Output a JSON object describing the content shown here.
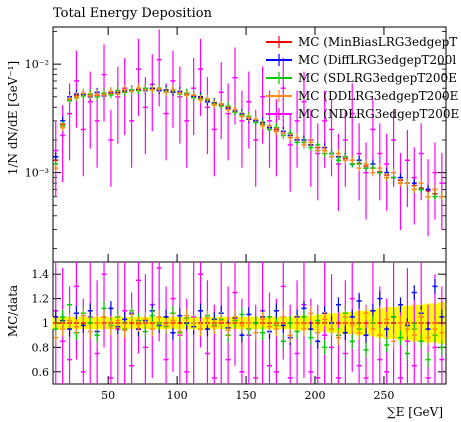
{
  "chart_data": [
    {
      "type": "line",
      "title": "Total Energy Deposition",
      "ylabel": "1/N dN/dE [GeV⁻¹]",
      "yscale": "log",
      "ylim": [
        0.00015,
        0.022
      ],
      "xlim": [
        10,
        295
      ],
      "ytick_values": [
        0.001,
        0.01
      ],
      "ytick_labels": [
        "10⁻³",
        "10⁻²"
      ],
      "legend_position": "top-right",
      "x": [
        12,
        17,
        22,
        27,
        32,
        37,
        42,
        47,
        52,
        57,
        62,
        67,
        72,
        77,
        82,
        87,
        92,
        97,
        102,
        107,
        112,
        117,
        122,
        127,
        132,
        137,
        142,
        147,
        152,
        157,
        162,
        167,
        172,
        177,
        182,
        187,
        192,
        197,
        202,
        207,
        212,
        217,
        222,
        227,
        232,
        237,
        242,
        247,
        252,
        257,
        262,
        267,
        272,
        277,
        282,
        287,
        292
      ],
      "series": [
        {
          "name": "MC (MinBiasLRG3edgepT",
          "color": "#ff0000",
          "values": [
            0.0013,
            0.0028,
            0.0047,
            0.0051,
            0.0052,
            0.0052,
            0.0052,
            0.0053,
            0.0054,
            0.0055,
            0.0056,
            0.0057,
            0.0058,
            0.0059,
            0.0059,
            0.0058,
            0.0057,
            0.0056,
            0.0055,
            0.0053,
            0.0051,
            0.0049,
            0.0046,
            0.0044,
            0.0042,
            0.004,
            0.0037,
            0.0034,
            0.0032,
            0.003,
            0.0028,
            0.0026,
            0.0025,
            0.0023,
            0.0022,
            0.002,
            0.0019,
            0.0018,
            0.0017,
            0.0016,
            0.0015,
            0.0014,
            0.00135,
            0.0013,
            0.00122,
            0.00115,
            0.0011,
            0.00102,
            0.00095,
            0.0009,
            0.00085,
            0.0008,
            0.00076,
            0.00072,
            0.00068,
            0.00064,
            0.0006
          ]
        },
        {
          "name": "MC (DiffLRG3edgepT200l",
          "color": "#0000ff",
          "values": [
            0.0014,
            0.003,
            0.005,
            0.0053,
            0.0053,
            0.005,
            0.0055,
            0.0051,
            0.0055,
            0.0054,
            0.0057,
            0.0058,
            0.0059,
            0.0057,
            0.006,
            0.0057,
            0.0058,
            0.0055,
            0.0056,
            0.0052,
            0.005,
            0.005,
            0.0045,
            0.0044,
            0.0043,
            0.0039,
            0.0037,
            0.0035,
            0.0031,
            0.003,
            0.0029,
            0.0026,
            0.0024,
            0.0024,
            0.0022,
            0.002,
            0.002,
            0.0018,
            0.0016,
            0.0017,
            0.0015,
            0.0014,
            0.0014,
            0.0012,
            0.0013,
            0.0011,
            0.0012,
            0.001,
            0.001,
            0.0009,
            0.0009,
            0.0008,
            0.0008,
            0.0007,
            0.0007,
            0.0007,
            0.0006
          ]
        },
        {
          "name": "MC (SDLRG3edgepT200E",
          "color": "#00cc00",
          "values": [
            0.0012,
            0.0027,
            0.0046,
            0.0049,
            0.0051,
            0.0053,
            0.005,
            0.0054,
            0.0052,
            0.0057,
            0.0055,
            0.0058,
            0.0057,
            0.006,
            0.0058,
            0.006,
            0.0056,
            0.0057,
            0.0053,
            0.0054,
            0.0049,
            0.0048,
            0.0047,
            0.0043,
            0.0041,
            0.0041,
            0.0036,
            0.0034,
            0.0033,
            0.0029,
            0.0028,
            0.0025,
            0.0026,
            0.0022,
            0.0023,
            0.0019,
            0.0019,
            0.0017,
            0.0018,
            0.0015,
            0.0015,
            0.0013,
            0.0014,
            0.0012,
            0.0012,
            0.0011,
            0.0011,
            0.001,
            0.0009,
            0.0009,
            0.0008,
            0.0008,
            0.0007,
            0.0007,
            0.0006,
            0.0006,
            0.0006
          ]
        },
        {
          "name": "MC (DDLRG3edgepT200E",
          "color": "#ff8c1a",
          "values": [
            0.0011,
            0.0026,
            0.0048,
            0.005,
            0.0054,
            0.0051,
            0.0053,
            0.0052,
            0.0056,
            0.0053,
            0.0058,
            0.0056,
            0.006,
            0.0058,
            0.0058,
            0.0059,
            0.0055,
            0.0058,
            0.0054,
            0.0052,
            0.0052,
            0.0047,
            0.0048,
            0.0042,
            0.0043,
            0.0038,
            0.0038,
            0.0033,
            0.0032,
            0.0031,
            0.0027,
            0.0027,
            0.0024,
            0.0023,
            0.0021,
            0.0021,
            0.0018,
            0.0019,
            0.0016,
            0.0016,
            0.0014,
            0.0015,
            0.0013,
            0.0013,
            0.0011,
            0.0012,
            0.001,
            0.0011,
            0.0009,
            0.001,
            0.0008,
            0.0008,
            0.0007,
            0.0008,
            0.0006,
            0.0007,
            0.0006
          ]
        },
        {
          "name": "MC (NDLRG3edgepT200E",
          "color": "#ff00ff",
          "values": [
            0.0016,
            0.0022,
            0.0035,
            0.007,
            0.0025,
            0.0045,
            0.003,
            0.008,
            0.002,
            0.005,
            0.006,
            0.003,
            0.009,
            0.004,
            0.0065,
            0.011,
            0.0035,
            0.007,
            0.005,
            0.003,
            0.006,
            0.009,
            0.004,
            0.0025,
            0.0055,
            0.0035,
            0.0075,
            0.003,
            0.0045,
            0.002,
            0.005,
            0.003,
            0.0025,
            0.006,
            0.0018,
            0.003,
            0.0045,
            0.002,
            0.0015,
            0.003,
            0.0025,
            0.0012,
            0.002,
            0.0035,
            0.0015,
            0.001,
            0.0025,
            0.0015,
            0.0012,
            0.002,
            0.0008,
            0.0013,
            0.0009,
            0.0015,
            0.0007,
            0.001,
            0.0008
          ]
        }
      ]
    },
    {
      "type": "line",
      "ylabel": "MC/data",
      "xlabel": "∑E [GeV]",
      "ylim": [
        0.5,
        1.5
      ],
      "xlim": [
        10,
        295
      ],
      "ytick_values": [
        0.6,
        0.8,
        1.0,
        1.2,
        1.4
      ],
      "ytick_labels": [
        "0.6",
        "0.8",
        "1",
        "1.2",
        "1.4"
      ],
      "xtick_values": [
        50,
        100,
        150,
        200,
        250
      ],
      "xtick_labels": [
        "50",
        "100",
        "150",
        "200",
        "250"
      ],
      "band_color": "#ffff00",
      "x": [
        12,
        17,
        22,
        27,
        32,
        37,
        42,
        47,
        52,
        57,
        62,
        67,
        72,
        77,
        82,
        87,
        92,
        97,
        102,
        107,
        112,
        117,
        122,
        127,
        132,
        137,
        142,
        147,
        152,
        157,
        162,
        167,
        172,
        177,
        182,
        187,
        192,
        197,
        202,
        207,
        212,
        217,
        222,
        227,
        232,
        237,
        242,
        247,
        252,
        257,
        262,
        267,
        272,
        277,
        282,
        287,
        292
      ],
      "band_halfwidth": [
        0.05,
        0.05,
        0.05,
        0.05,
        0.05,
        0.05,
        0.05,
        0.05,
        0.05,
        0.05,
        0.05,
        0.05,
        0.05,
        0.05,
        0.05,
        0.05,
        0.05,
        0.05,
        0.05,
        0.05,
        0.05,
        0.05,
        0.05,
        0.05,
        0.05,
        0.05,
        0.05,
        0.05,
        0.05,
        0.05,
        0.05,
        0.05,
        0.05,
        0.05,
        0.05,
        0.06,
        0.06,
        0.06,
        0.07,
        0.07,
        0.08,
        0.08,
        0.09,
        0.09,
        0.1,
        0.1,
        0.11,
        0.12,
        0.13,
        0.13,
        0.14,
        0.14,
        0.15,
        0.15,
        0.16,
        0.16,
        0.17
      ],
      "series": [
        {
          "name": "MC (MinBiasLRG3edgepT",
          "color": "#ff0000",
          "values": [
            1,
            1,
            1,
            1,
            1,
            1,
            1,
            1,
            1,
            1,
            1,
            1,
            1,
            1,
            1,
            1,
            1,
            1,
            1,
            1,
            1,
            1,
            1,
            1,
            1,
            1,
            1,
            1,
            1,
            1,
            1,
            1,
            1,
            1,
            1,
            1,
            1,
            1,
            1,
            1,
            1,
            1,
            1,
            1,
            1,
            1,
            1,
            1,
            1,
            1,
            1,
            1,
            1,
            1,
            1,
            1,
            1
          ]
        },
        {
          "name": "MC (DiffLRG3edgepT200l",
          "color": "#0000ff",
          "values": [
            1.05,
            1.02,
            0.95,
            1.08,
            0.98,
            1.1,
            0.93,
            1.05,
            1.12,
            0.97,
            1.03,
            1.08,
            0.95,
            1.02,
            1.1,
            0.98,
            1.05,
            0.92,
            1.06,
            1.0,
            0.97,
            1.1,
            0.95,
            1.03,
            1.08,
            0.96,
            1.04,
            0.9,
            1.07,
            1.0,
            1.05,
            0.93,
            1.1,
            0.98,
            0.88,
            1.05,
            1.12,
            0.95,
            0.85,
            1.08,
            1.0,
            1.15,
            0.92,
            1.05,
            1.18,
            0.9,
            1.1,
            1.2,
            0.95,
            1.05,
            1.15,
            0.98,
            1.25,
            1.08,
            0.95,
            1.3,
            1.05
          ]
        },
        {
          "name": "MC (SDLRG3edgepT200E",
          "color": "#00cc00",
          "values": [
            0.95,
            1.05,
            1.15,
            0.92,
            1.08,
            1.0,
            0.9,
            1.12,
            0.98,
            1.05,
            0.95,
            1.1,
            1.02,
            0.93,
            1.06,
            1.0,
            0.97,
            1.08,
            0.92,
            1.04,
            1.0,
            0.95,
            1.06,
            0.98,
            1.03,
            0.9,
            1.02,
            1.07,
            0.95,
            1.0,
            0.92,
            1.05,
            0.98,
            0.85,
            1.0,
            0.93,
            1.05,
            0.88,
            1.02,
            0.8,
            0.95,
            0.9,
            1.08,
            0.85,
            0.95,
            0.78,
            1.0,
            0.9,
            0.82,
            1.05,
            0.88,
            0.75,
            0.95,
            0.85,
            0.7,
            0.9,
            0.8
          ]
        },
        {
          "name": "MC (DDLRG3edgepT200E",
          "color": "#ff8c1a",
          "values": [
            0.88,
            0.95,
            1.02,
            0.97,
            1.06,
            0.93,
            1.0,
            1.05,
            0.96,
            1.02,
            0.94,
            1.07,
            0.99,
            1.03,
            0.95,
            1.05,
            0.98,
            1.02,
            0.93,
            1.06,
            1.0,
            0.95,
            1.04,
            0.97,
            1.02,
            0.94,
            1.05,
            0.98,
            1.0,
            0.92,
            1.03,
            0.97,
            0.95,
            1.05,
            0.9,
            1.0,
            0.95,
            1.08,
            0.92,
            1.03,
            0.95,
            0.88,
            1.05,
            0.98,
            0.92,
            1.08,
            0.95,
            0.9,
            1.03,
            0.85,
            1.0,
            0.95,
            0.9,
            1.05,
            0.88,
            0.95,
            0.92
          ]
        },
        {
          "name": "MC (NDLRG3edgepT200E",
          "color": "#ff00ff",
          "values": [
            1.1,
            0.85,
            0.7,
            1.3,
            0.6,
            1.05,
            0.75,
            1.4,
            0.55,
            0.95,
            1.1,
            0.65,
            1.35,
            0.8,
            1.15,
            1.45,
            0.7,
            1.2,
            0.9,
            0.6,
            1.05,
            1.4,
            0.75,
            0.55,
            1.0,
            0.7,
            1.25,
            0.6,
            0.9,
            0.55,
            1.1,
            0.65,
            0.6,
            1.3,
            0.55,
            0.75,
            1.15,
            0.6,
            0.55,
            0.9,
            0.8,
            0.55,
            0.75,
            1.2,
            0.65,
            0.55,
            1.1,
            0.7,
            0.6,
            1.0,
            0.55,
            0.85,
            0.65,
            1.05,
            0.55,
            0.8,
            0.7
          ]
        }
      ]
    }
  ]
}
